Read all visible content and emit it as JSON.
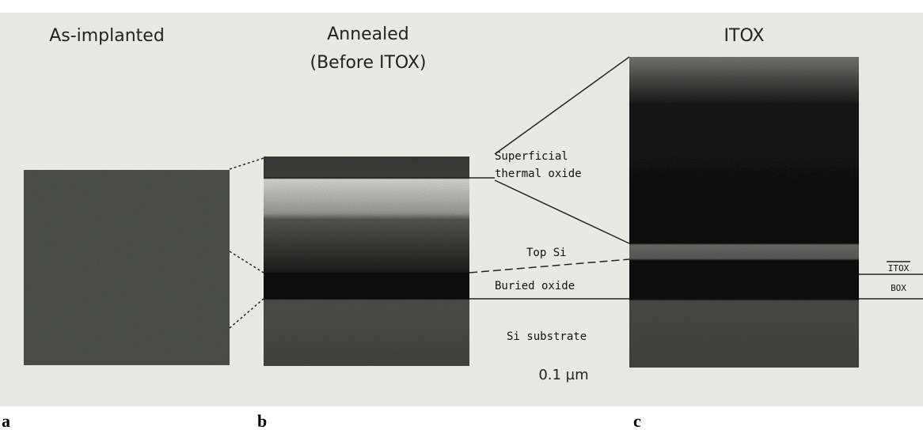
{
  "panels": [
    {
      "letter": "a",
      "title": [
        "As-implanted"
      ]
    },
    {
      "letter": "b",
      "title": [
        "Annealed",
        "(Before ITOX)"
      ]
    },
    {
      "letter": "c",
      "title": [
        "ITOX"
      ]
    }
  ],
  "annotations": {
    "superficial_thermal_oxide": [
      "Superficial",
      "thermal oxide"
    ],
    "top_si": "Top Si",
    "buried_oxide": "Buried oxide",
    "si_substrate": "Si substrate",
    "scale_bar": "0.1 µm",
    "itox": "ITOX",
    "box": "BOX"
  }
}
